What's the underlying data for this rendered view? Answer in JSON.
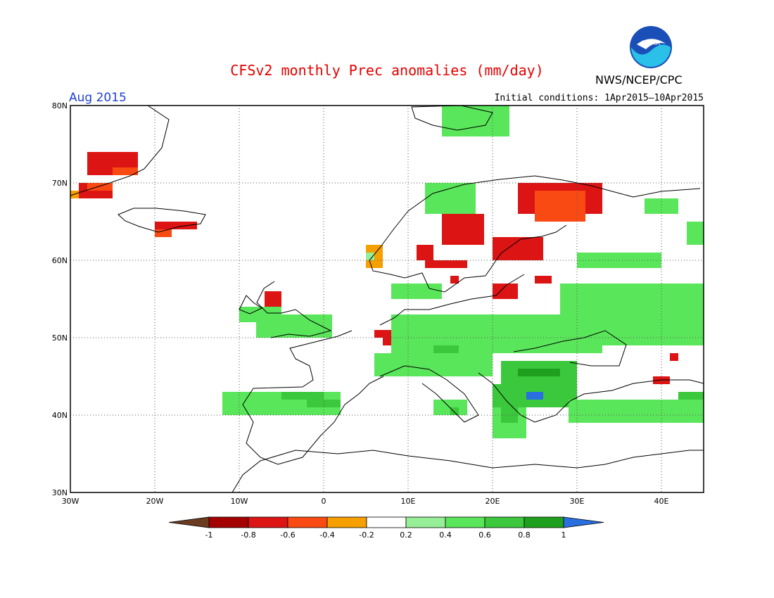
{
  "header": {
    "title": "CFSv2 monthly Prec anomalies (mm/day)",
    "agency": "NWS/NCEP/CPC",
    "logo_text": "NOAA",
    "valid_month": "Aug 2015",
    "initial_conditions": "Initial conditions: 1Apr2015–10Apr2015"
  },
  "map": {
    "lon_range": [
      -30,
      45
    ],
    "lat_range": [
      30,
      80
    ],
    "lon_ticks": [
      {
        "value": -30,
        "label": "30W"
      },
      {
        "value": -20,
        "label": "20W"
      },
      {
        "value": -10,
        "label": "10W"
      },
      {
        "value": 0,
        "label": "0"
      },
      {
        "value": 10,
        "label": "10E"
      },
      {
        "value": 20,
        "label": "20E"
      },
      {
        "value": 30,
        "label": "30E"
      },
      {
        "value": 40,
        "label": "40E"
      }
    ],
    "lat_ticks": [
      {
        "value": 30,
        "label": "30N"
      },
      {
        "value": 40,
        "label": "40N"
      },
      {
        "value": 50,
        "label": "50N"
      },
      {
        "value": 60,
        "label": "60N"
      },
      {
        "value": 70,
        "label": "70N"
      },
      {
        "value": 80,
        "label": "80N"
      }
    ],
    "grid": "dotted",
    "cell_deg": 1,
    "anomaly_regions": [
      {
        "level": 2,
        "lon": [
          -29,
          -25
        ],
        "lat": [
          68,
          70
        ]
      },
      {
        "level": 3,
        "lon": [
          -28,
          -25
        ],
        "lat": [
          69,
          70
        ]
      },
      {
        "level": 4,
        "lon": [
          -30,
          -29
        ],
        "lat": [
          68,
          69
        ]
      },
      {
        "level": 2,
        "lon": [
          -28,
          -22
        ],
        "lat": [
          71,
          74
        ]
      },
      {
        "level": 3,
        "lon": [
          -25,
          -22
        ],
        "lat": [
          71,
          72
        ]
      },
      {
        "level": 2,
        "lon": [
          -20,
          -15
        ],
        "lat": [
          64,
          65
        ]
      },
      {
        "level": 3,
        "lon": [
          -20,
          -18
        ],
        "lat": [
          63,
          64
        ]
      },
      {
        "level": 2,
        "lon": [
          14,
          19
        ],
        "lat": [
          62,
          66
        ]
      },
      {
        "level": 2,
        "lon": [
          20,
          26
        ],
        "lat": [
          60,
          63
        ]
      },
      {
        "level": 2,
        "lon": [
          23,
          33
        ],
        "lat": [
          66,
          70
        ]
      },
      {
        "level": 3,
        "lon": [
          25,
          31
        ],
        "lat": [
          65,
          69
        ]
      },
      {
        "level": 2,
        "lon": [
          12,
          17
        ],
        "lat": [
          59,
          60
        ]
      },
      {
        "level": 2,
        "lon": [
          11,
          13
        ],
        "lat": [
          60,
          62
        ]
      },
      {
        "level": 2,
        "lon": [
          25,
          27
        ],
        "lat": [
          57,
          58
        ]
      },
      {
        "level": 2,
        "lon": [
          7,
          9
        ],
        "lat": [
          49,
          51
        ]
      },
      {
        "level": 2,
        "lon": [
          6,
          7
        ],
        "lat": [
          50,
          51
        ]
      },
      {
        "level": 2,
        "lon": [
          -7,
          -5
        ],
        "lat": [
          54,
          56
        ]
      },
      {
        "level": 2,
        "lon": [
          39,
          41
        ],
        "lat": [
          44,
          45
        ]
      },
      {
        "level": 2,
        "lon": [
          41,
          42
        ],
        "lat": [
          47,
          48
        ]
      },
      {
        "level": 4,
        "lon": [
          5,
          7
        ],
        "lat": [
          59,
          62
        ]
      },
      {
        "level": 6,
        "lon": [
          5,
          6
        ],
        "lat": [
          60,
          61
        ]
      },
      {
        "level": 2,
        "lon": [
          20,
          23
        ],
        "lat": [
          55,
          57
        ]
      },
      {
        "level": 2,
        "lon": [
          15,
          16
        ],
        "lat": [
          57,
          58
        ]
      },
      {
        "level": 7,
        "lon": [
          -12,
          2
        ],
        "lat": [
          40,
          43
        ]
      },
      {
        "level": 8,
        "lon": [
          -5,
          0
        ],
        "lat": [
          42,
          43
        ]
      },
      {
        "level": 8,
        "lon": [
          -2,
          2
        ],
        "lat": [
          41,
          42
        ]
      },
      {
        "level": 7,
        "lon": [
          -8,
          1
        ],
        "lat": [
          50,
          53
        ]
      },
      {
        "level": 7,
        "lon": [
          -10,
          -5
        ],
        "lat": [
          52,
          54
        ]
      },
      {
        "level": 7,
        "lon": [
          8,
          33
        ],
        "lat": [
          48,
          53
        ]
      },
      {
        "level": 8,
        "lon": [
          13,
          16
        ],
        "lat": [
          47,
          49
        ]
      },
      {
        "level": 7,
        "lon": [
          6,
          20
        ],
        "lat": [
          45,
          48
        ]
      },
      {
        "level": 8,
        "lon": [
          21,
          30
        ],
        "lat": [
          44,
          47
        ]
      },
      {
        "level": 9,
        "lon": [
          23,
          28
        ],
        "lat": [
          45,
          46
        ]
      },
      {
        "level": 8,
        "lon": [
          20,
          30
        ],
        "lat": [
          41,
          44
        ]
      },
      {
        "level": 10,
        "lon": [
          24,
          26
        ],
        "lat": [
          42,
          43
        ]
      },
      {
        "level": 7,
        "lon": [
          20,
          24
        ],
        "lat": [
          37,
          41
        ]
      },
      {
        "level": 8,
        "lon": [
          21,
          23
        ],
        "lat": [
          39,
          41
        ]
      },
      {
        "level": 7,
        "lon": [
          13,
          17
        ],
        "lat": [
          40,
          42
        ]
      },
      {
        "level": 8,
        "lon": [
          15,
          16
        ],
        "lat": [
          40,
          41
        ]
      },
      {
        "level": 7,
        "lon": [
          29,
          45
        ],
        "lat": [
          39,
          42
        ]
      },
      {
        "level": 8,
        "lon": [
          42,
          45
        ],
        "lat": [
          42,
          43
        ]
      },
      {
        "level": 7,
        "lon": [
          28,
          45
        ],
        "lat": [
          52,
          57
        ]
      },
      {
        "level": 7,
        "lon": [
          31,
          45
        ],
        "lat": [
          49,
          52
        ]
      },
      {
        "level": 7,
        "lon": [
          30,
          40
        ],
        "lat": [
          59,
          61
        ]
      },
      {
        "level": 7,
        "lon": [
          8,
          14
        ],
        "lat": [
          55,
          57
        ]
      },
      {
        "level": 7,
        "lon": [
          12,
          18
        ],
        "lat": [
          66,
          70
        ]
      },
      {
        "level": 7,
        "lon": [
          14,
          22
        ],
        "lat": [
          76,
          80
        ]
      },
      {
        "level": 7,
        "lon": [
          38,
          42
        ],
        "lat": [
          66,
          68
        ]
      },
      {
        "level": 7,
        "lon": [
          43,
          45
        ],
        "lat": [
          62,
          65
        ]
      }
    ]
  },
  "colorbar": {
    "colors": [
      "#6b3b1f",
      "#a50000",
      "#dc1414",
      "#fa4a14",
      "#f5a000",
      "#ffffff",
      "#96ee96",
      "#5ae65a",
      "#3cc83c",
      "#1ea01e",
      "#2a6fe0"
    ],
    "labels": [
      "-1",
      "-0.8",
      "-0.6",
      "-0.4",
      "-0.2",
      "0.2",
      "0.4",
      "0.6",
      "0.8",
      "1"
    ]
  }
}
